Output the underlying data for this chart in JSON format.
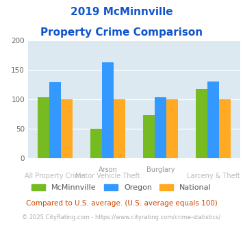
{
  "title_line1": "2019 McMinnville",
  "title_line2": "Property Crime Comparison",
  "groups": [
    {
      "name": "McMinnville",
      "color": "#77bb22",
      "values": [
        104,
        50,
        74,
        118
      ]
    },
    {
      "name": "Oregon",
      "color": "#3399ff",
      "values": [
        129,
        163,
        104,
        130
      ]
    },
    {
      "name": "National",
      "color": "#ffaa22",
      "values": [
        100,
        100,
        100,
        100
      ]
    }
  ],
  "n_categories": 4,
  "top_labels": {
    "1": "Arson",
    "2": "Burglary"
  },
  "bottom_labels": {
    "0": "All Property Crime",
    "1": "Motor Vehicle Theft",
    "3": "Larceny & Theft"
  },
  "ylim": [
    0,
    200
  ],
  "yticks": [
    0,
    50,
    100,
    150,
    200
  ],
  "plot_bg_color": "#dce9f0",
  "title_color": "#1155cc",
  "top_label_color": "#999999",
  "bottom_label_color": "#bbbbbb",
  "footer_text": "Compared to U.S. average. (U.S. average equals 100)",
  "footer_color": "#cc4400",
  "credit_text": "© 2025 CityRating.com - https://www.cityrating.com/crime-statistics/",
  "credit_color": "#aaaaaa",
  "legend_label_color": "#555555"
}
